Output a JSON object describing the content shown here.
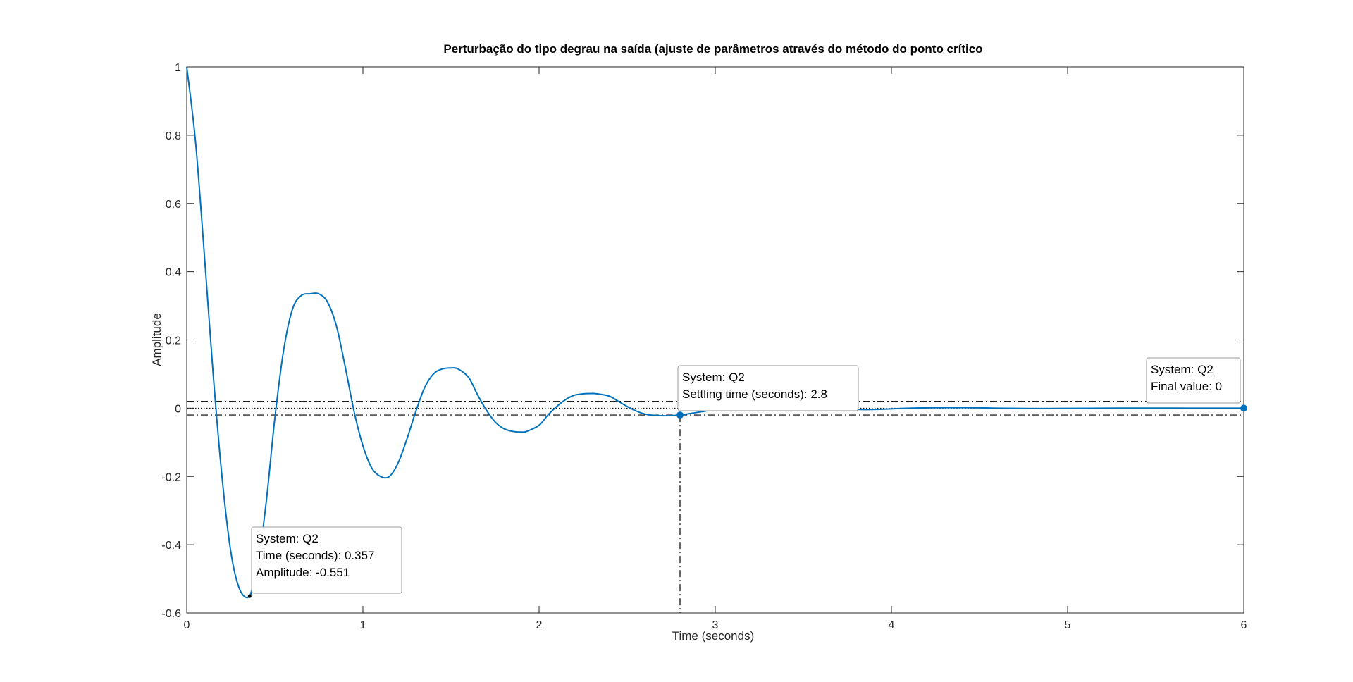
{
  "chart_data": {
    "type": "line",
    "title": "Perturbação do tipo degrau na saída (ajuste de parâmetros através do método do ponto crítico",
    "xlabel": "Time (seconds)",
    "ylabel": "Amplitude",
    "xlim": [
      0,
      6
    ],
    "ylim": [
      -0.6,
      1
    ],
    "xticks": [
      0,
      1,
      2,
      3,
      4,
      5,
      6
    ],
    "yticks": [
      -0.6,
      -0.4,
      -0.2,
      0,
      0.2,
      0.4,
      0.6,
      0.8,
      1
    ],
    "xtick_labels": [
      "0",
      "1",
      "2",
      "3",
      "4",
      "5",
      "6"
    ],
    "ytick_labels": [
      "-0.6",
      "-0.4",
      "-0.2",
      "0",
      "0.2",
      "0.4",
      "0.6",
      "0.8",
      "1"
    ],
    "grid": false,
    "line_color": "#0072BD",
    "series": [
      {
        "x": [
          0,
          0.05,
          0.1,
          0.15,
          0.2,
          0.25,
          0.3,
          0.357,
          0.4,
          0.45,
          0.5,
          0.55,
          0.6,
          0.65,
          0.7,
          0.75,
          0.8,
          0.85,
          0.9,
          0.95,
          1.0,
          1.05,
          1.1,
          1.15,
          1.2,
          1.25,
          1.3,
          1.35,
          1.4,
          1.45,
          1.5,
          1.54,
          1.6,
          1.65,
          1.7,
          1.75,
          1.8,
          1.85,
          1.9,
          1.93,
          2.0,
          2.05,
          2.1,
          2.15,
          2.2,
          2.25,
          2.3,
          2.33,
          2.4,
          2.45,
          2.5,
          2.55,
          2.6,
          2.65,
          2.7,
          2.73,
          2.8,
          2.9,
          3.0,
          3.1,
          3.2,
          3.3,
          3.4,
          3.5,
          3.6,
          3.7,
          3.8,
          3.9,
          4.0,
          4.1,
          4.2,
          4.3,
          4.4,
          4.5,
          4.6,
          4.7,
          4.8,
          4.9,
          5.0,
          5.2,
          5.4,
          5.6,
          5.8,
          6.0
        ],
        "y": [
          1.0,
          0.78,
          0.45,
          0.1,
          -0.2,
          -0.42,
          -0.53,
          -0.551,
          -0.47,
          -0.28,
          -0.03,
          0.17,
          0.29,
          0.33,
          0.335,
          0.335,
          0.31,
          0.24,
          0.12,
          -0.01,
          -0.11,
          -0.175,
          -0.2,
          -0.2,
          -0.16,
          -0.09,
          -0.01,
          0.06,
          0.1,
          0.115,
          0.118,
          0.115,
          0.09,
          0.04,
          -0.005,
          -0.04,
          -0.06,
          -0.068,
          -0.07,
          -0.068,
          -0.05,
          -0.02,
          0.005,
          0.025,
          0.038,
          0.042,
          0.043,
          0.042,
          0.035,
          0.02,
          0.005,
          -0.008,
          -0.017,
          -0.021,
          -0.022,
          -0.022,
          -0.02,
          -0.012,
          -0.004,
          0.003,
          0.007,
          0.008,
          0.007,
          0.004,
          0.0,
          -0.003,
          -0.004,
          -0.004,
          -0.002,
          0.0,
          0.001,
          0.0015,
          0.0015,
          0.001,
          0.0,
          -0.0005,
          -0.001,
          -0.001,
          -0.0005,
          0.0,
          0.0003,
          0.0002,
          0.0,
          0.0
        ]
      }
    ],
    "settling_band": [
      -0.02,
      0.02
    ],
    "settling_time": 2.8,
    "final_value": 0,
    "datatips": [
      {
        "x": 0.357,
        "y": -0.551,
        "marker": "dot-small",
        "lines": [
          "System: Q2",
          "Time (seconds): 0.357",
          "Amplitude: -0.551"
        ]
      },
      {
        "x": 2.8,
        "y": -0.02,
        "marker": "dot",
        "lines": [
          "System: Q2",
          "Settling time (seconds): 2.8"
        ]
      },
      {
        "x": 6,
        "y": 0,
        "marker": "dot",
        "lines": [
          "System: Q2",
          "Final value: 0"
        ]
      }
    ]
  }
}
